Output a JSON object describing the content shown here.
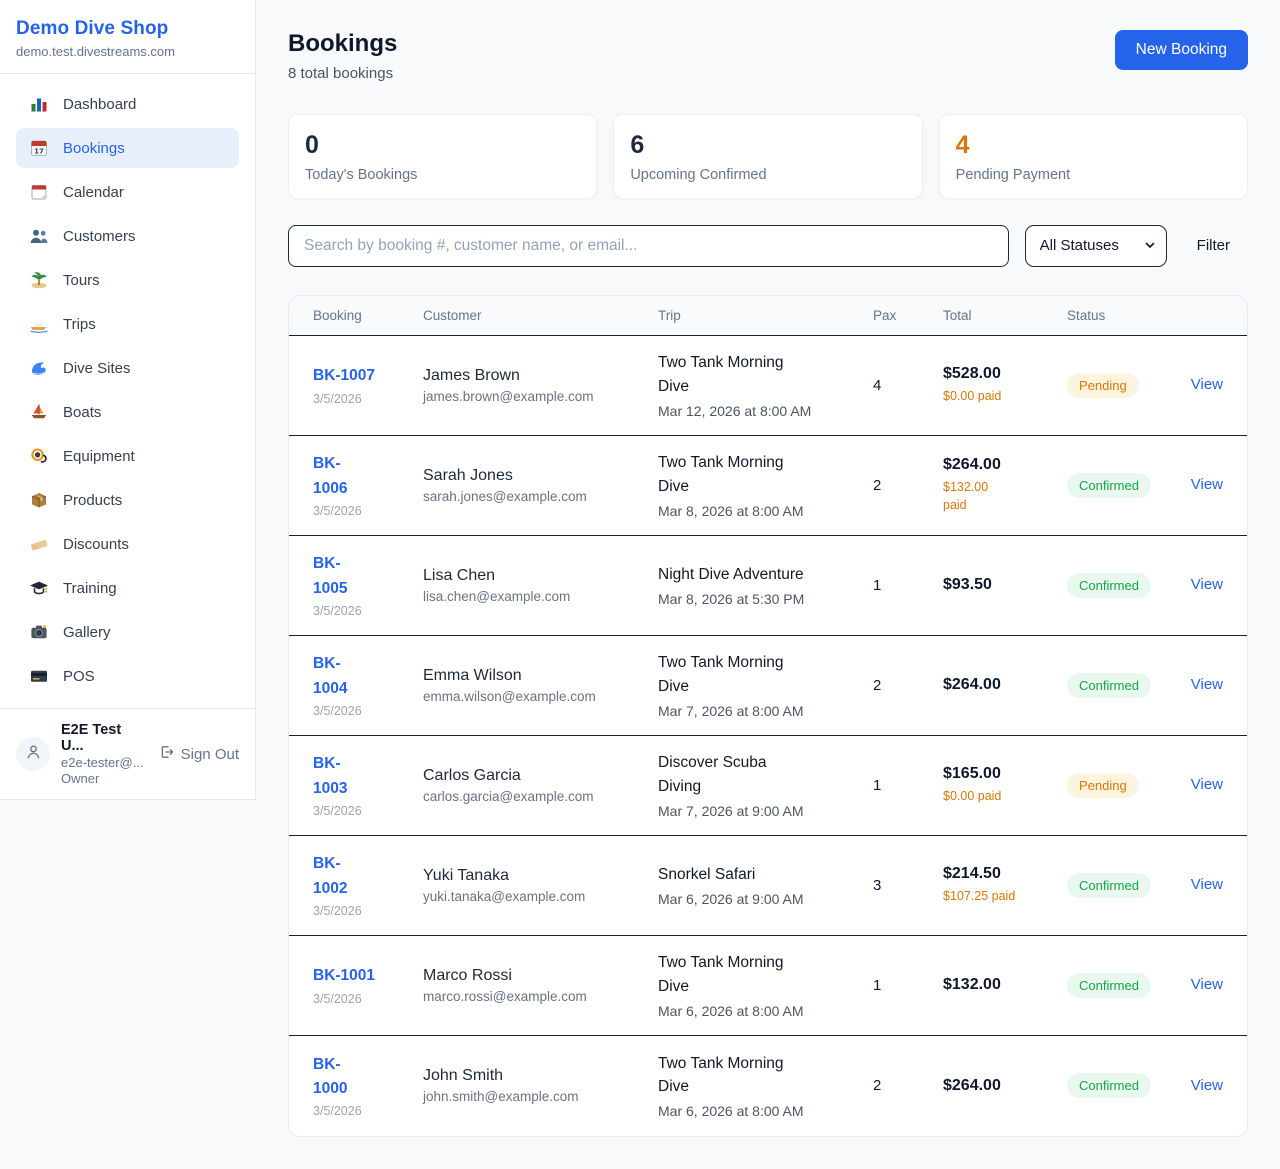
{
  "sidebar": {
    "brand": {
      "name": "Demo Dive Shop",
      "domain": "demo.test.divestreams.com"
    },
    "items": [
      {
        "label": "Dashboard",
        "icon": "dashboard-icon",
        "active": false
      },
      {
        "label": "Bookings",
        "icon": "bookings-icon",
        "active": true
      },
      {
        "label": "Calendar",
        "icon": "calendar-icon",
        "active": false
      },
      {
        "label": "Customers",
        "icon": "customers-icon",
        "active": false
      },
      {
        "label": "Tours",
        "icon": "tours-icon",
        "active": false
      },
      {
        "label": "Trips",
        "icon": "trips-icon",
        "active": false
      },
      {
        "label": "Dive Sites",
        "icon": "dive-sites-icon",
        "active": false
      },
      {
        "label": "Boats",
        "icon": "boats-icon",
        "active": false
      },
      {
        "label": "Equipment",
        "icon": "equipment-icon",
        "active": false
      },
      {
        "label": "Products",
        "icon": "products-icon",
        "active": false
      },
      {
        "label": "Discounts",
        "icon": "discounts-icon",
        "active": false
      },
      {
        "label": "Training",
        "icon": "training-icon",
        "active": false
      },
      {
        "label": "Gallery",
        "icon": "gallery-icon",
        "active": false
      },
      {
        "label": "POS",
        "icon": "pos-icon",
        "active": false
      }
    ],
    "user": {
      "name": "E2E Test U...",
      "email": "e2e-tester@...",
      "role": "Owner",
      "sign_out_label": "Sign Out"
    }
  },
  "header": {
    "title": "Bookings",
    "subtitle": "8 total bookings",
    "new_booking_label": "New Booking"
  },
  "stats": [
    {
      "value": "0",
      "label": "Today's Bookings",
      "color": "#1e293b"
    },
    {
      "value": "6",
      "label": "Upcoming Confirmed",
      "color": "#1e293b"
    },
    {
      "value": "4",
      "label": "Pending Payment",
      "color": "#d97706"
    }
  ],
  "filters": {
    "search_placeholder": "Search by booking #, customer name, or email...",
    "status_selected": "All Statuses",
    "filter_label": "Filter"
  },
  "table": {
    "columns": [
      "Booking",
      "Customer",
      "Trip",
      "Pax",
      "Total",
      "Status"
    ],
    "view_label": "View",
    "rows": [
      {
        "booking_number": "BK-1007",
        "booking_date": "3/5/2026",
        "customer_name": "James Brown",
        "customer_email": "james.brown@example.com",
        "trip_name": "Two Tank Morning\nDive",
        "trip_datetime": "Mar 12, 2026 at 8:00 AM",
        "pax": "4",
        "total": "$528.00",
        "paid": "$0.00 paid",
        "status": "Pending"
      },
      {
        "booking_number": "BK-\n1006",
        "booking_date": "3/5/2026",
        "customer_name": "Sarah Jones",
        "customer_email": "sarah.jones@example.com",
        "trip_name": "Two Tank Morning\nDive",
        "trip_datetime": "Mar 8, 2026 at 8:00 AM",
        "pax": "2",
        "total": "$264.00",
        "paid": "$132.00\npaid",
        "status": "Confirmed"
      },
      {
        "booking_number": "BK-\n1005",
        "booking_date": "3/5/2026",
        "customer_name": "Lisa Chen",
        "customer_email": "lisa.chen@example.com",
        "trip_name": "Night Dive Adventure",
        "trip_datetime": "Mar 8, 2026 at 5:30 PM",
        "pax": "1",
        "total": "$93.50",
        "paid": null,
        "status": "Confirmed"
      },
      {
        "booking_number": "BK-\n1004",
        "booking_date": "3/5/2026",
        "customer_name": "Emma Wilson",
        "customer_email": "emma.wilson@example.com",
        "trip_name": "Two Tank Morning\nDive",
        "trip_datetime": "Mar 7, 2026 at 8:00 AM",
        "pax": "2",
        "total": "$264.00",
        "paid": null,
        "status": "Confirmed"
      },
      {
        "booking_number": "BK-\n1003",
        "booking_date": "3/5/2026",
        "customer_name": "Carlos Garcia",
        "customer_email": "carlos.garcia@example.com",
        "trip_name": "Discover Scuba\nDiving",
        "trip_datetime": "Mar 7, 2026 at 9:00 AM",
        "pax": "1",
        "total": "$165.00",
        "paid": "$0.00 paid",
        "status": "Pending"
      },
      {
        "booking_number": "BK-\n1002",
        "booking_date": "3/5/2026",
        "customer_name": "Yuki Tanaka",
        "customer_email": "yuki.tanaka@example.com",
        "trip_name": "Snorkel Safari",
        "trip_datetime": "Mar 6, 2026 at 9:00 AM",
        "pax": "3",
        "total": "$214.50",
        "paid": "$107.25 paid",
        "status": "Confirmed"
      },
      {
        "booking_number": "BK-1001",
        "booking_date": "3/5/2026",
        "customer_name": "Marco Rossi",
        "customer_email": "marco.rossi@example.com",
        "trip_name": "Two Tank Morning\nDive",
        "trip_datetime": "Mar 6, 2026 at 8:00 AM",
        "pax": "1",
        "total": "$132.00",
        "paid": null,
        "status": "Confirmed"
      },
      {
        "booking_number": "BK-\n1000",
        "booking_date": "3/5/2026",
        "customer_name": "John Smith",
        "customer_email": "john.smith@example.com",
        "trip_name": "Two Tank Morning\nDive",
        "trip_datetime": "Mar 6, 2026 at 8:00 AM",
        "pax": "2",
        "total": "$264.00",
        "paid": null,
        "status": "Confirmed"
      }
    ]
  },
  "colors": {
    "accent": "#2563eb",
    "pending": "#d97706",
    "confirmed": "#16a34a"
  }
}
